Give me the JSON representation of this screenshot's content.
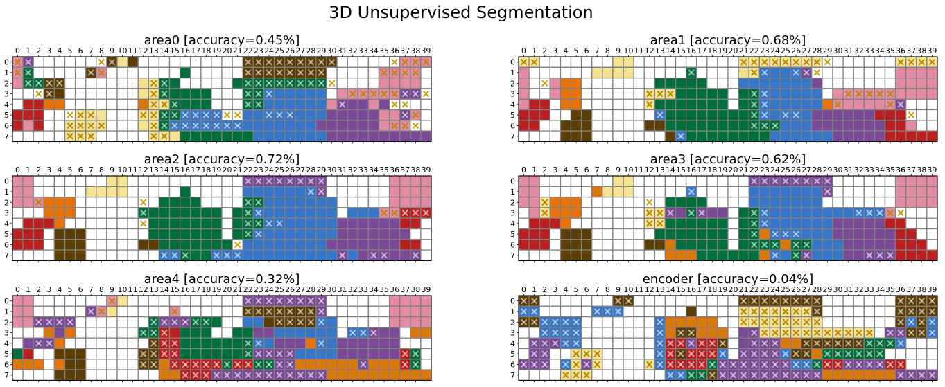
{
  "title": "3D Unsupervised Segmentation",
  "colors": {
    "0": "#ffffff",
    "1": "#e48ba4",
    "2": "#f3e390",
    "3": "#bb2020",
    "4": "#e8730a",
    "5": "#5c3d05",
    "6": "#006f3c",
    "7": "#3777c9",
    "8": "#7a4a98"
  },
  "chart_data": [
    {
      "type": "heatmap",
      "title": "area0 [accuracy=0.45%]",
      "x": [
        0,
        1,
        2,
        3,
        4,
        5,
        6,
        7,
        8,
        9,
        10,
        11,
        12,
        13,
        14,
        15,
        16,
        17,
        18,
        19,
        20,
        21,
        22,
        23,
        24,
        25,
        26,
        27,
        28,
        29,
        30,
        31,
        32,
        33,
        34,
        35,
        36,
        37,
        38,
        39
      ],
      "y": [
        0,
        1,
        2,
        3,
        4,
        5,
        6,
        7
      ],
      "cells": [
        "18000000052500000000005555555550000001111",
        "160000051000000060000055555555000001111",
        "166550000000226600000666666666000001111",
        "000550000000226666600066777777011111188",
        "033440000000422666600066777777188818000",
        "3330002220002266777700777777778888811810",
        "31300222200022677777777777777888888111000",
        "0000022200000222666666677777778888888888"
      ],
      "marks": [
        "1100000011000000000000111111111000001111",
        "1100000110000000000000111111110000011110",
        "0111100000000110000000111111111000000000",
        "0011000000000110000000111000000011111111",
        "0000000000001111000000110000000100001100",
        "0000011100001111111111001110000000000110",
        "0000011110000111111111000000000000001110",
        "0000011100000110000000000000000000000000"
      ]
    },
    {
      "type": "heatmap",
      "title": "area1 [accuracy=0.68%]",
      "x": [
        0,
        1,
        2,
        3,
        4,
        5,
        6,
        7,
        8,
        9,
        10,
        11,
        12,
        13,
        14,
        15,
        16,
        17,
        18,
        19,
        20,
        21,
        22,
        23,
        24,
        25,
        26,
        27,
        28,
        29,
        30,
        31,
        32,
        33,
        34,
        35,
        36,
        37,
        38,
        39
      ],
      "y": [
        0,
        1,
        2,
        3,
        4,
        5,
        6,
        7
      ],
      "cells": [
        "2200000002200000000002222222200000002222",
        "1000000222200000600002277778000000001111",
        "1001440000000666660007777777800000001111",
        "1001440000002226666606677777701111111111",
        "1330440000002666666606677777741111118000",
        "3330055000000766666666677777888888333000",
        "3300555000005566666666666777888888833100",
        "0000555000000057666666667777778888833333"
      ],
      "marks": [
        "1100000000000000000001111111110000001111",
        "0000000000000000100000110011100000000000",
        "0010000000000000000000000000000000000000",
        "0000000000001110000000110000000111110000",
        "0000000000001000000000110000001000011000",
        "0000000000000100000000110110000000000100",
        "0000000000000000000000111000000000000000",
        "0000000000000001000000000000000000000000"
      ]
    },
    {
      "type": "heatmap",
      "title": "area2 [accuracy=0.72%]",
      "x": [
        0,
        1,
        2,
        3,
        4,
        5,
        6,
        7,
        8,
        9,
        10,
        11,
        12,
        13,
        14,
        15,
        16,
        17,
        18,
        19,
        20,
        21,
        22,
        23,
        24,
        25,
        26,
        27,
        28,
        29,
        30,
        31,
        32,
        33,
        34,
        35,
        36,
        37,
        38,
        39
      ],
      "y": [
        0,
        1,
        2,
        3,
        4,
        5,
        6,
        7
      ],
      "cells": [
        "1100000002200000000000888888880000001111",
        "1100000222200000600000777777780000001111",
        "1114440000000066660000667777777000001111",
        "0004440000006666666606677777777077711333",
        "0333400000000666666606667777777888888330",
        "3330555000000666666606677777777888888800",
        "3330555000005566666660777777778888888330",
        "0000555000000077666777777777777878888880"
      ],
      "marks": [
        "0000000000000000000000111111110000000000",
        "0000000000000000000000000000110000000000",
        "0010000000001000000000110000000000000000",
        "0000000000001000000000110000000000011111",
        "0000000000001000000000111100000000000000",
        "0000000000000000000000110000000000000000",
        "0000000000000000000001000000000000000000",
        "0000000000000011100111000000000100110010"
      ]
    },
    {
      "type": "heatmap",
      "title": "area3 [accuracy=0.62%]",
      "x": [
        0,
        1,
        2,
        3,
        4,
        5,
        6,
        7,
        8,
        9,
        10,
        11,
        12,
        13,
        14,
        15,
        16,
        17,
        18,
        19,
        20,
        21,
        22,
        23,
        24,
        25,
        26,
        27,
        28,
        29,
        30,
        31,
        32,
        33,
        34,
        35,
        36,
        37,
        38,
        39
      ],
      "y": [
        0,
        1,
        2,
        3,
        4,
        5,
        6,
        7
      ],
      "cells": [
        "1100000002200000000000888888880000001111",
        "1100000422200000700000777777780000001111",
        "1124440000000066660000777777700000001111",
        "0124440000002288688806677777777777710000",
        "0333400000002266666606677777778888833000",
        "3330555000000666666606647777778888883300",
        "3330555000005546666606666466777888883330",
        "0000555000000044466666647768777888883333"
      ],
      "marks": [
        "0000000000000000000000111111110000000000",
        "0000000100000000100000000000010000000000",
        "0010000000001000000000000000000000000000",
        "0010000000001110110000110000000011111000",
        "0000000000001100000000110000000000000000",
        "0000000000000000000000111110000000000000",
        "0000000000000010000000111111000000000000",
        "0000000000000011100000011011000001110000"
      ]
    },
    {
      "type": "heatmap",
      "title": "area4 [accuracy=0.32%]",
      "x": [
        0,
        1,
        2,
        3,
        4,
        5,
        6,
        7,
        8,
        9,
        10,
        11,
        12,
        13,
        14,
        15,
        16,
        17,
        18,
        19,
        20,
        21,
        22,
        23,
        24,
        25,
        26,
        27,
        28,
        29,
        30,
        31,
        32,
        33,
        34,
        35,
        36,
        37,
        38,
        39
      ],
      "y": [
        0,
        1,
        2,
        3,
        4,
        5,
        6,
        7
      ],
      "cells": [
        "1100000001200000000000888888880000001111",
        "1100000812000001000000555555580000001111",
        "1188880000000688866600775555577000001111",
        "0004840000006633666006688777777077888044",
        "0888400000000533666666677888477888888000",
        "6300555000005533666666688887777888888360",
        "4440455000005543333363366884444448444360",
        "0000555000000044333888888888884444444444"
      ],
      "marks": [
        "0000000001000000000000111111110000000000",
        "0000000110000001000000111111110000000000",
        "0011110000000111111000000111110000000000",
        "0001000000001110000000000000000011100011",
        "0011000000000111000000110000010000000000",
        "0000000000001111000000111110000000000110",
        "1100000000001111111111111111111111111110",
        "0000000000000011111111111111111111111111"
      ]
    },
    {
      "type": "heatmap",
      "title": "encoder [accuracy=0.04%]",
      "x": [
        0,
        1,
        2,
        3,
        4,
        5,
        6,
        7,
        8,
        9,
        10,
        11,
        12,
        13,
        14,
        15,
        16,
        17,
        18,
        19,
        20,
        21,
        22,
        23,
        24,
        25,
        26,
        27,
        28,
        29,
        30,
        31,
        32,
        33,
        34,
        35,
        36,
        37,
        38,
        39
      ],
      "y": [
        0,
        1,
        2,
        3,
        4,
        5,
        6,
        7
      ],
      "cells": [
        "5500000005500000000005555555500000005555",
        "7700000777000000500002222222500000005555",
        "5577770000000744444002222222200000005757",
        "0077770000000745544408822222222222088557",
        "0888770000000733833508888445555556667000",
        "0880022200000735333708888755466666600000",
        "8880728200002733336888888877633888833000",
        "0000222000000077665888888888844444448888"
      ],
      "marks": [
        "1100000001100000000001111111100000001111",
        "1100000111000000000001111111100000001111",
        "1111110000000111111001111111100000001111",
        "0011110000000111111100111111111111011111",
        "0111110000000111111100111111111111111000",
        "0110011100000111111101111111111111100000",
        "1110111100001111111111111111111111111000",
        "0000111000000011111111111111111111111111"
      ]
    }
  ]
}
